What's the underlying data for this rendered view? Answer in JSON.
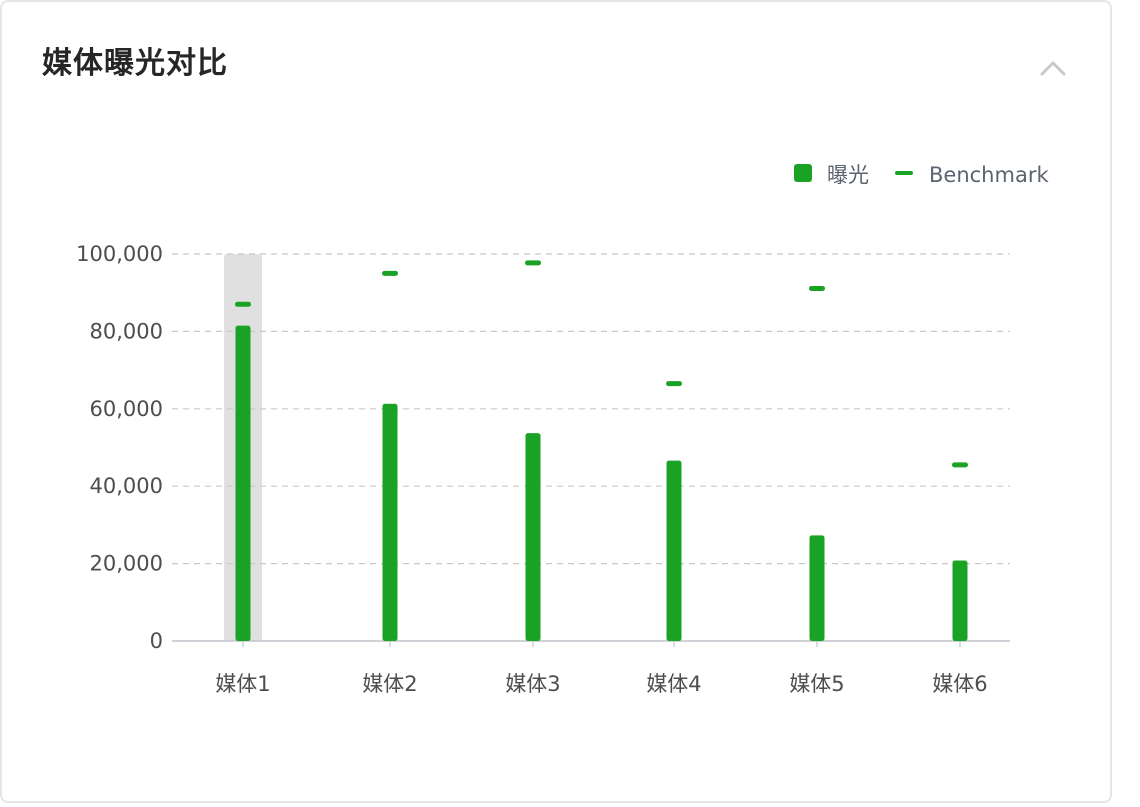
{
  "card": {
    "title": "媒体曝光对比",
    "collapse_icon": "chevron-up-icon"
  },
  "legend": {
    "items": [
      {
        "label": "曝光",
        "marker": "square",
        "color": "#1aa225"
      },
      {
        "label": "Benchmark",
        "marker": "dash",
        "color": "#1aa225"
      }
    ],
    "placement": "top-right"
  },
  "colors": {
    "bar": "#1aa225",
    "highlight": "#e0e0e0",
    "grid": "#c8c8c8",
    "axis": "#c0c4cc"
  },
  "chart_data": {
    "type": "bar",
    "categories": [
      "媒体1",
      "媒体2",
      "媒体3",
      "媒体4",
      "媒体5",
      "媒体6"
    ],
    "series": [
      {
        "name": "曝光",
        "values": [
          81500,
          61300,
          53700,
          46600,
          27300,
          20800
        ]
      },
      {
        "name": "Benchmark",
        "values": [
          87000,
          95000,
          97700,
          66500,
          91100,
          45500
        ]
      }
    ],
    "ylim": [
      0,
      100000
    ],
    "yticks": [
      0,
      20000,
      40000,
      60000,
      80000,
      100000
    ],
    "ytick_labels": [
      "0",
      "20,000",
      "40,000",
      "60,000",
      "80,000",
      "100,000"
    ],
    "grid": true,
    "highlighted_category": "媒体1"
  }
}
